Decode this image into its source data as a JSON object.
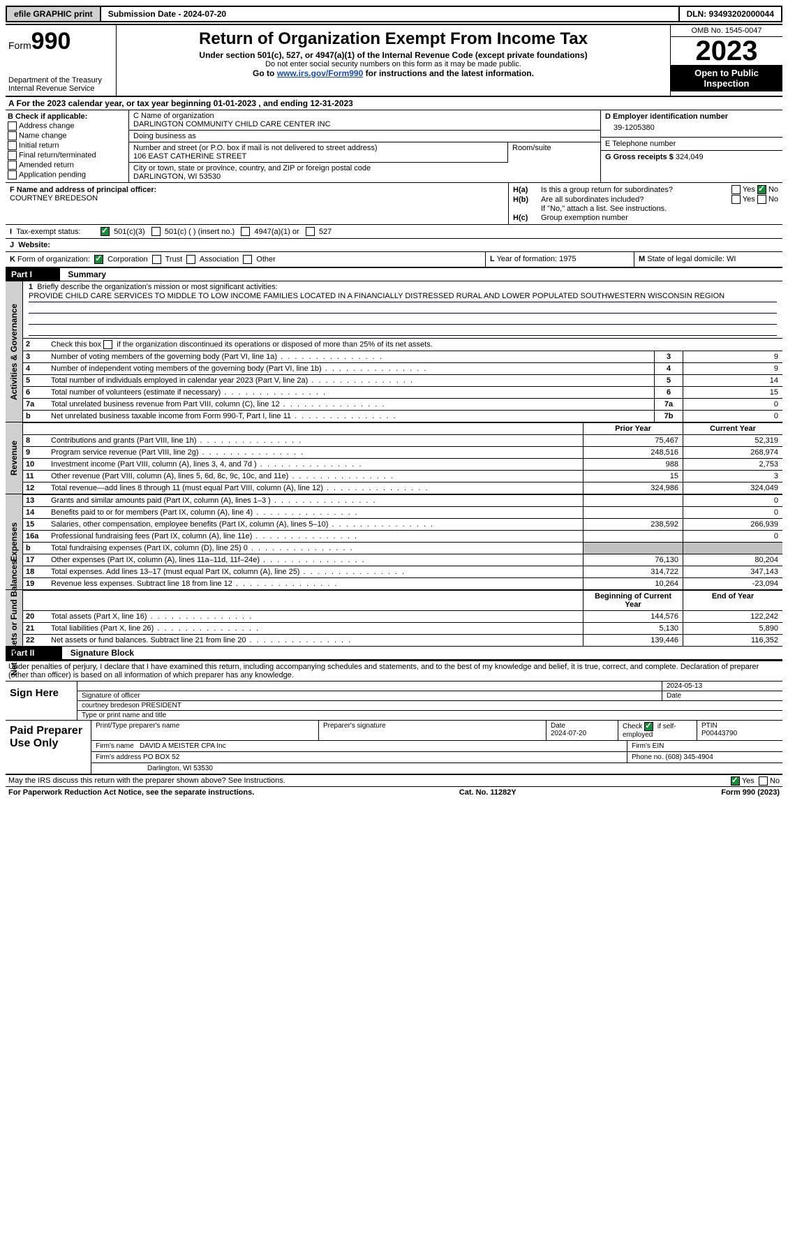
{
  "topbar": {
    "efile": "efile GRAPHIC print",
    "submission": "Submission Date - 2024-07-20",
    "dln": "DLN: 93493202000044"
  },
  "header": {
    "form_label": "Form",
    "form_num": "990",
    "dept": "Department of the Treasury Internal Revenue Service",
    "title": "Return of Organization Exempt From Income Tax",
    "sub1": "Under section 501(c), 527, or 4947(a)(1) of the Internal Revenue Code (except private foundations)",
    "sub2": "Do not enter social security numbers on this form as it may be made public.",
    "sub3_a": "Go to ",
    "sub3_link": "www.irs.gov/Form990",
    "sub3_b": " for instructions and the latest information.",
    "omb": "OMB No. 1545-0047",
    "year": "2023",
    "opi": "Open to Public Inspection"
  },
  "lineA": {
    "pre": "A For the 2023 calendar year, or tax year beginning ",
    "begin": "01-01-2023",
    "mid": " , and ending ",
    "end": "12-31-2023"
  },
  "colB": {
    "title": "B Check if applicable:",
    "items": [
      "Address change",
      "Name change",
      "Initial return",
      "Final return/terminated",
      "Amended return",
      "Application pending"
    ]
  },
  "colC": {
    "name_lbl": "C Name of organization",
    "name": "DARLINGTON COMMUNITY CHILD CARE CENTER INC",
    "dba_lbl": "Doing business as",
    "dba": "",
    "addr_lbl": "Number and street (or P.O. box if mail is not delivered to street address)",
    "room_lbl": "Room/suite",
    "addr": "106 EAST CATHERINE STREET",
    "room": "",
    "city_lbl": "City or town, state or province, country, and ZIP or foreign postal code",
    "city": "DARLINGTON, WI  53530"
  },
  "colDE": {
    "d_lbl": "D Employer identification number",
    "ein": "39-1205380",
    "e_lbl": "E Telephone number",
    "phone": "",
    "g_lbl": "G Gross receipts $",
    "gross": "324,049"
  },
  "colF": {
    "lbl": "F  Name and address of principal officer:",
    "name": "COURTNEY BREDESON"
  },
  "colH": {
    "a_lbl": "H(a)",
    "a_txt": "Is this a group return for subordinates?",
    "a_yes": "Yes",
    "a_no": "No",
    "b_lbl": "H(b)",
    "b_txt": "Are all subordinates included?",
    "b_note": "If \"No,\" attach a list. See instructions.",
    "c_lbl": "H(c)",
    "c_txt": "Group exemption number"
  },
  "rowI": {
    "lbl": "I",
    "txt": "Tax-exempt status:",
    "o1": "501(c)(3)",
    "o2": "501(c) (  ) (insert no.)",
    "o3": "4947(a)(1) or",
    "o4": "527"
  },
  "rowJ": {
    "lbl": "J",
    "txt": "Website:",
    "val": ""
  },
  "rowK": {
    "lbl": "K",
    "txt": "Form of organization:",
    "o1": "Corporation",
    "o2": "Trust",
    "o3": "Association",
    "o4": "Other"
  },
  "rowL": {
    "lbl": "L",
    "txt": "Year of formation: 1975"
  },
  "rowM": {
    "lbl": "M",
    "txt": "State of legal domicile: WI"
  },
  "part1": {
    "hdr": "Part I",
    "title": "Summary"
  },
  "mission": {
    "num": "1",
    "lbl": "Briefly describe the organization's mission or most significant activities:",
    "text": "PROVIDE CHILD CARE SERVICES TO MIDDLE TO LOW INCOME FAMILIES LOCATED IN A FINANCIALLY DISTRESSED RURAL AND LOWER POPULATED SOUTHWESTERN WISCONSIN REGION"
  },
  "gov": {
    "tab": "Activities & Governance",
    "l2_num": "2",
    "l2": "Check this box      if the organization discontinued its operations or disposed of more than 25% of its net assets.",
    "lines": [
      {
        "n": "3",
        "t": "Number of voting members of the governing body (Part VI, line 1a)",
        "b": "3",
        "v": "9"
      },
      {
        "n": "4",
        "t": "Number of independent voting members of the governing body (Part VI, line 1b)",
        "b": "4",
        "v": "9"
      },
      {
        "n": "5",
        "t": "Total number of individuals employed in calendar year 2023 (Part V, line 2a)",
        "b": "5",
        "v": "14"
      },
      {
        "n": "6",
        "t": "Total number of volunteers (estimate if necessary)",
        "b": "6",
        "v": "15"
      },
      {
        "n": "7a",
        "t": "Total unrelated business revenue from Part VIII, column (C), line 12",
        "b": "7a",
        "v": "0"
      },
      {
        "n": "b",
        "t": "Net unrelated business taxable income from Form 990-T, Part I, line 11",
        "b": "7b",
        "v": "0"
      }
    ]
  },
  "rev": {
    "tab": "Revenue",
    "py": "Prior Year",
    "cy": "Current Year",
    "lines": [
      {
        "n": "8",
        "t": "Contributions and grants (Part VIII, line 1h)",
        "p": "75,467",
        "c": "52,319"
      },
      {
        "n": "9",
        "t": "Program service revenue (Part VIII, line 2g)",
        "p": "248,516",
        "c": "268,974"
      },
      {
        "n": "10",
        "t": "Investment income (Part VIII, column (A), lines 3, 4, and 7d )",
        "p": "988",
        "c": "2,753"
      },
      {
        "n": "11",
        "t": "Other revenue (Part VIII, column (A), lines 5, 6d, 8c, 9c, 10c, and 11e)",
        "p": "15",
        "c": "3"
      },
      {
        "n": "12",
        "t": "Total revenue—add lines 8 through 11 (must equal Part VIII, column (A), line 12)",
        "p": "324,986",
        "c": "324,049"
      }
    ]
  },
  "exp": {
    "tab": "Expenses",
    "lines": [
      {
        "n": "13",
        "t": "Grants and similar amounts paid (Part IX, column (A), lines 1–3 )",
        "p": "",
        "c": "0"
      },
      {
        "n": "14",
        "t": "Benefits paid to or for members (Part IX, column (A), line 4)",
        "p": "",
        "c": "0"
      },
      {
        "n": "15",
        "t": "Salaries, other compensation, employee benefits (Part IX, column (A), lines 5–10)",
        "p": "238,592",
        "c": "266,939"
      },
      {
        "n": "16a",
        "t": "Professional fundraising fees (Part IX, column (A), line 11e)",
        "p": "",
        "c": "0"
      },
      {
        "n": "b",
        "t": "Total fundraising expenses (Part IX, column (D), line 25) 0",
        "p": "grey",
        "c": "grey"
      },
      {
        "n": "17",
        "t": "Other expenses (Part IX, column (A), lines 11a–11d, 11f–24e)",
        "p": "76,130",
        "c": "80,204"
      },
      {
        "n": "18",
        "t": "Total expenses. Add lines 13–17 (must equal Part IX, column (A), line 25)",
        "p": "314,722",
        "c": "347,143"
      },
      {
        "n": "19",
        "t": "Revenue less expenses. Subtract line 18 from line 12",
        "p": "10,264",
        "c": "-23,094"
      }
    ]
  },
  "net": {
    "tab": "Net Assets or Fund Balances",
    "by": "Beginning of Current Year",
    "ey": "End of Year",
    "lines": [
      {
        "n": "20",
        "t": "Total assets (Part X, line 16)",
        "p": "144,576",
        "c": "122,242"
      },
      {
        "n": "21",
        "t": "Total liabilities (Part X, line 26)",
        "p": "5,130",
        "c": "5,890"
      },
      {
        "n": "22",
        "t": "Net assets or fund balances. Subtract line 21 from line 20",
        "p": "139,446",
        "c": "116,352"
      }
    ]
  },
  "part2": {
    "hdr": "Part II",
    "title": "Signature Block"
  },
  "penalty": "Under penalties of perjury, I declare that I have examined this return, including accompanying schedules and statements, and to the best of my knowledge and belief, it is true, correct, and complete. Declaration of preparer (other than officer) is based on all information of which preparer has any knowledge.",
  "sign": {
    "here": "Sign Here",
    "sig_lbl": "Signature of officer",
    "date_lbl": "Date",
    "date": "2024-05-13",
    "name": "courtney bredeson PRESIDENT",
    "type_lbl": "Type or print name and title"
  },
  "paid": {
    "lbl": "Paid Preparer Use Only",
    "h1": "Print/Type preparer's name",
    "h2": "Preparer's signature",
    "h3": "Date",
    "date": "2024-07-20",
    "h4": "Check",
    "h4b": "if self-employed",
    "h5": "PTIN",
    "ptin": "P00443790",
    "firm_lbl": "Firm's name",
    "firm": "DAVID A MEISTER CPA Inc",
    "ein_lbl": "Firm's EIN",
    "addr_lbl": "Firm's address",
    "addr1": "PO BOX 52",
    "addr2": "Darlington, WI  53530",
    "phone_lbl": "Phone no.",
    "phone": "(608) 345-4904"
  },
  "discuss": {
    "txt": "May the IRS discuss this return with the preparer shown above? See Instructions.",
    "yes": "Yes",
    "no": "No"
  },
  "footer": {
    "l": "For Paperwork Reduction Act Notice, see the separate instructions.",
    "c": "Cat. No. 11282Y",
    "r": "Form 990 (2023)"
  }
}
